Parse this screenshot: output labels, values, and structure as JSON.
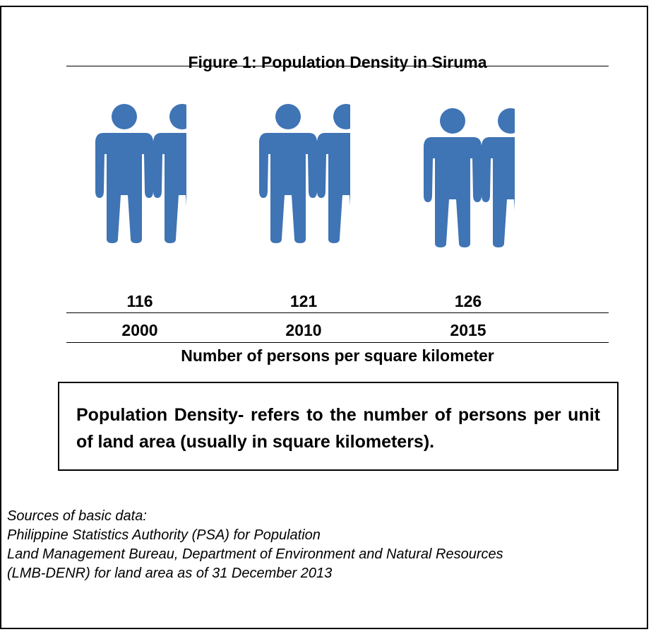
{
  "figure": {
    "title": "Figure 1: Population Density in Siruma",
    "caption": "Number of persons per square kilometer"
  },
  "chart_data": {
    "type": "bar",
    "categories": [
      "2000",
      "2010",
      "2015"
    ],
    "values": [
      116,
      121,
      126
    ],
    "title": "Figure 1: Population Density in Siruma",
    "xlabel": "",
    "ylabel": "Number of persons per square kilometer",
    "value_labels": [
      "116",
      "121",
      "126"
    ],
    "year_labels": [
      "2000",
      "2010",
      "2015"
    ],
    "icon": "person-icon",
    "icon_color": "#3F74B5"
  },
  "definition": {
    "text": "Population Density- refers to the number of persons per unit of land area (usually in square kilometers)."
  },
  "sources": {
    "lines": [
      "Sources of basic data:",
      "Philippine Statistics Authority (PSA) for Population",
      "Land Management Bureau, Department of Environment and Natural Resources",
      "(LMB-DENR) for land area as of 31 December 2013"
    ]
  }
}
